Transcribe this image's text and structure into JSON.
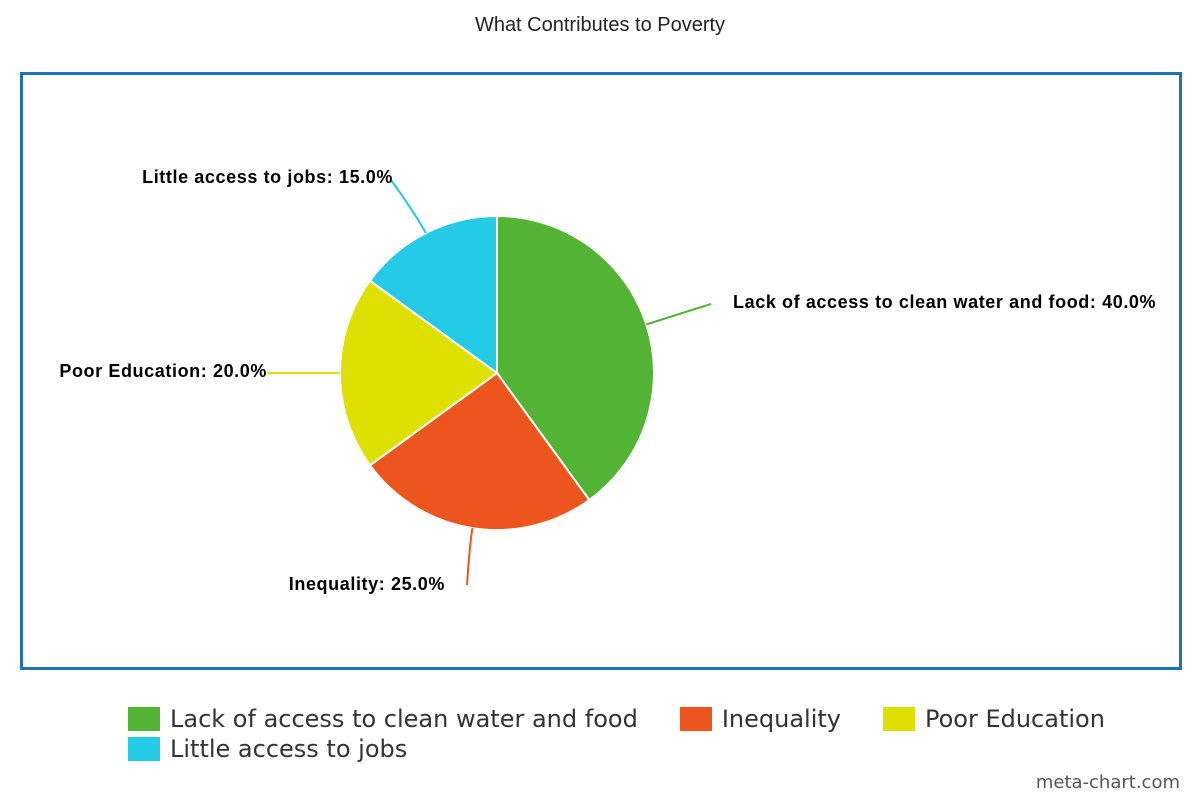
{
  "chart_data": {
    "type": "pie",
    "title": "What Contributes to Poverty",
    "slices": [
      {
        "label": "Lack of access to clean water and food",
        "value": 40.0,
        "display": "Lack of access to clean water and food: 40.0%",
        "color": "#52b335"
      },
      {
        "label": "Inequality",
        "value": 25.0,
        "display": "Inequality: 25.0%",
        "color": "#ec561e"
      },
      {
        "label": "Poor Education",
        "value": 20.0,
        "display": "Poor Education: 20.0%",
        "color": "#dde000"
      },
      {
        "label": "Little access to jobs",
        "value": 15.0,
        "display": "Little access to jobs: 15.0%",
        "color": "#24cae6"
      }
    ],
    "legend_placement": "bottom",
    "frame_color": "#1f72bb"
  },
  "credit": "meta-chart.com"
}
